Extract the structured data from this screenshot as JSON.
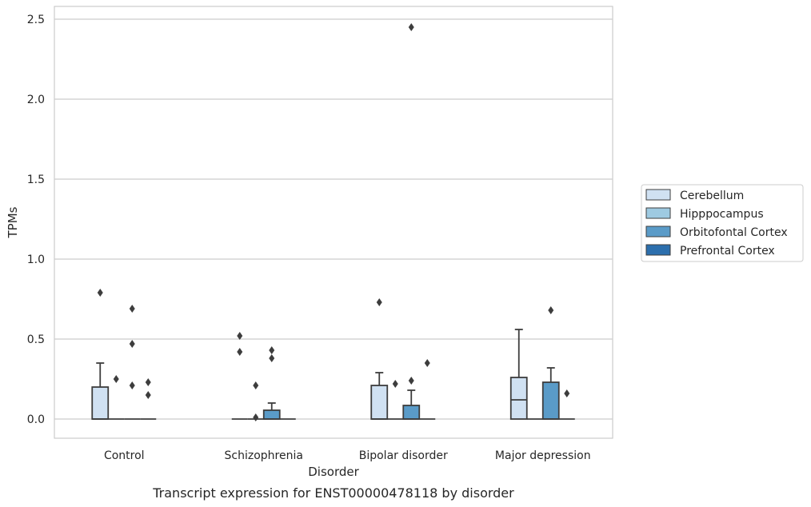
{
  "chart_data": {
    "type": "box",
    "caption": "Transcript expression for ENST00000478118 by disorder",
    "xlabel": "Disorder",
    "ylabel": "TPMs",
    "ylim": [
      -0.12,
      2.58
    ],
    "yticks": [
      0.0,
      0.5,
      1.0,
      1.5,
      2.0,
      2.5
    ],
    "ytick_labels": [
      "0.0",
      "0.5",
      "1.0",
      "1.5",
      "2.0",
      "2.5"
    ],
    "grid": true,
    "legend_position": "right",
    "categories": [
      "Control",
      "Schizophrenia",
      "Bipolar disorder",
      "Major depression"
    ],
    "series": [
      {
        "name": "Cerebellum",
        "color": "#d0e1f2",
        "boxes": [
          {
            "q1": 0.0,
            "median": 0.0,
            "q3": 0.2,
            "whisker_low": 0.0,
            "whisker_high": 0.35,
            "outliers": [
              0.79
            ]
          },
          {
            "q1": 0.0,
            "median": 0.0,
            "q3": 0.0,
            "whisker_low": 0.0,
            "whisker_high": 0.0,
            "outliers": [
              0.52,
              0.42
            ]
          },
          {
            "q1": 0.0,
            "median": 0.0,
            "q3": 0.21,
            "whisker_low": 0.0,
            "whisker_high": 0.29,
            "outliers": [
              0.73
            ]
          },
          {
            "q1": 0.0,
            "median": 0.12,
            "q3": 0.26,
            "whisker_low": 0.0,
            "whisker_high": 0.56,
            "outliers": []
          }
        ]
      },
      {
        "name": "Hipppocampus",
        "color": "#9ecae1",
        "boxes": [
          {
            "q1": 0.0,
            "median": 0.0,
            "q3": 0.0,
            "whisker_low": 0.0,
            "whisker_high": 0.0,
            "outliers": [
              0.25
            ]
          },
          {
            "q1": 0.0,
            "median": 0.0,
            "q3": 0.0,
            "whisker_low": 0.0,
            "whisker_high": 0.0,
            "outliers": [
              0.21,
              0.01
            ]
          },
          {
            "q1": 0.0,
            "median": 0.0,
            "q3": 0.0,
            "whisker_low": 0.0,
            "whisker_high": 0.0,
            "outliers": [
              0.22
            ]
          },
          {
            "q1": 0.0,
            "median": 0.0,
            "q3": 0.0,
            "whisker_low": 0.0,
            "whisker_high": 0.0,
            "outliers": []
          }
        ]
      },
      {
        "name": "Orbitofontal Cortex",
        "color": "#5a9bc8",
        "boxes": [
          {
            "q1": 0.0,
            "median": 0.0,
            "q3": 0.0,
            "whisker_low": 0.0,
            "whisker_high": 0.0,
            "outliers": [
              0.69,
              0.47,
              0.21
            ]
          },
          {
            "q1": 0.0,
            "median": 0.0,
            "q3": 0.055,
            "whisker_low": 0.0,
            "whisker_high": 0.1,
            "outliers": [
              0.43,
              0.38
            ]
          },
          {
            "q1": 0.0,
            "median": 0.0,
            "q3": 0.085,
            "whisker_low": 0.0,
            "whisker_high": 0.18,
            "outliers": [
              2.45,
              0.24
            ]
          },
          {
            "q1": 0.0,
            "median": 0.0,
            "q3": 0.23,
            "whisker_low": 0.0,
            "whisker_high": 0.32,
            "outliers": [
              0.68
            ]
          }
        ]
      },
      {
        "name": "Prefrontal Cortex",
        "color": "#2c6fad",
        "boxes": [
          {
            "q1": 0.0,
            "median": 0.0,
            "q3": 0.0,
            "whisker_low": 0.0,
            "whisker_high": 0.0,
            "outliers": [
              0.23,
              0.15
            ]
          },
          {
            "q1": 0.0,
            "median": 0.0,
            "q3": 0.0,
            "whisker_low": 0.0,
            "whisker_high": 0.0,
            "outliers": []
          },
          {
            "q1": 0.0,
            "median": 0.0,
            "q3": 0.0,
            "whisker_low": 0.0,
            "whisker_high": 0.0,
            "outliers": [
              0.35
            ]
          },
          {
            "q1": 0.0,
            "median": 0.0,
            "q3": 0.0,
            "whisker_low": 0.0,
            "whisker_high": 0.0,
            "outliers": [
              0.16
            ]
          }
        ]
      }
    ]
  }
}
